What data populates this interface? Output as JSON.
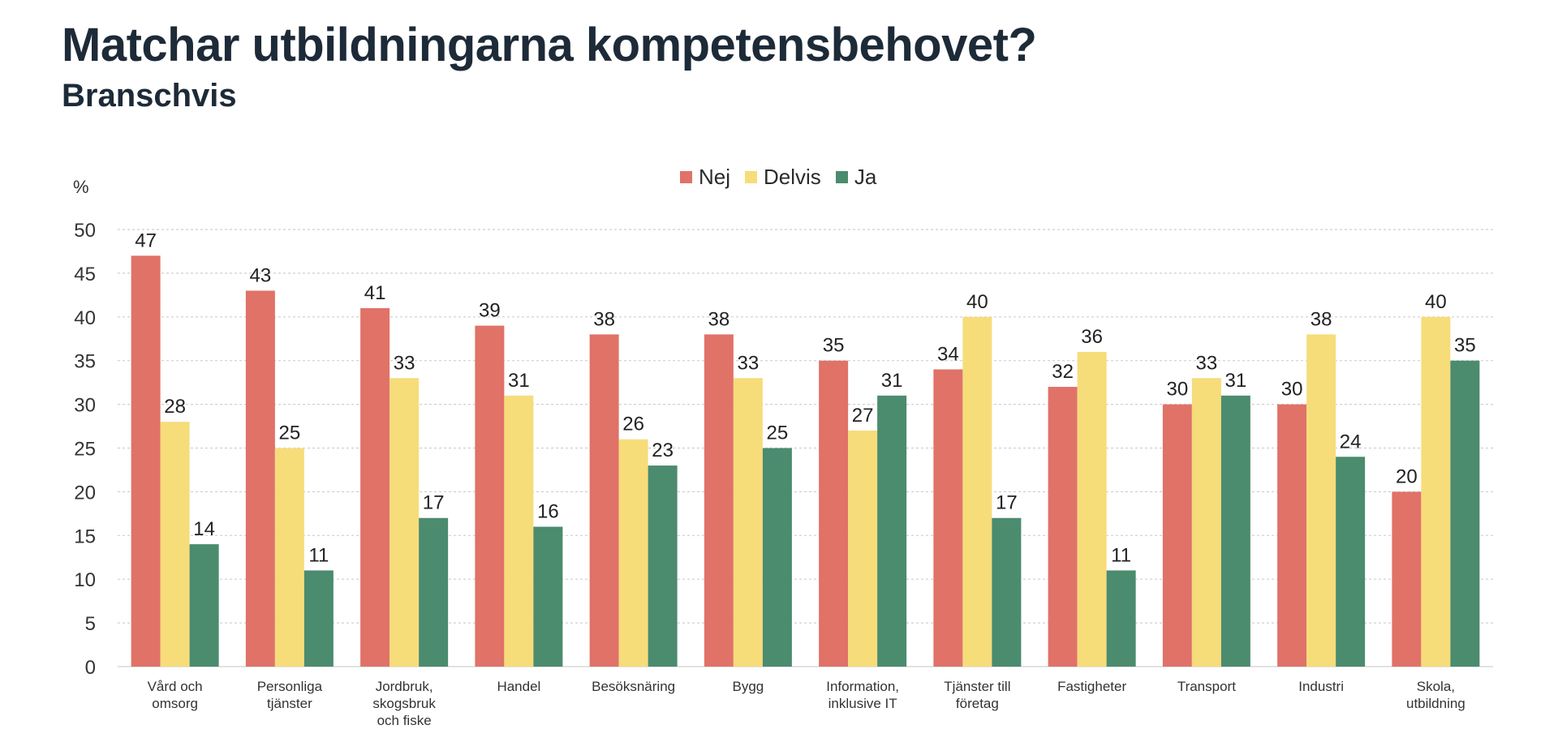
{
  "title": "Matchar utbildningarna kompetensbehovet?",
  "subtitle": "Branschvis",
  "chart_data": {
    "type": "bar",
    "title": "Matchar utbildningarna kompetensbehovet?",
    "subtitle": "Branschvis",
    "ylabel": "%",
    "xlabel": "",
    "ylim": [
      0,
      50
    ],
    "yticks": [
      0,
      5,
      10,
      15,
      20,
      25,
      30,
      35,
      40,
      45,
      50
    ],
    "grid": true,
    "legend_position": "top-center",
    "categories": [
      [
        "Vård och",
        "omsorg"
      ],
      [
        "Personliga",
        "tjänster"
      ],
      [
        "Jordbruk,",
        "skogsbruk",
        "och fiske"
      ],
      [
        "Handel"
      ],
      [
        "Besöksnäring"
      ],
      [
        "Bygg"
      ],
      [
        "Information,",
        "inklusive IT"
      ],
      [
        "Tjänster till",
        "företag"
      ],
      [
        "Fastigheter"
      ],
      [
        "Transport"
      ],
      [
        "Industri"
      ],
      [
        "Skola,",
        "utbildning"
      ]
    ],
    "series": [
      {
        "name": "Nej",
        "color": "#e07268",
        "values": [
          47,
          43,
          41,
          39,
          38,
          38,
          35,
          34,
          32,
          30,
          30,
          20
        ]
      },
      {
        "name": "Delvis",
        "color": "#f7dc7a",
        "values": [
          28,
          25,
          33,
          31,
          26,
          33,
          27,
          40,
          36,
          33,
          38,
          40
        ]
      },
      {
        "name": "Ja",
        "color": "#4b8b6e",
        "values": [
          14,
          11,
          17,
          16,
          23,
          25,
          31,
          17,
          11,
          31,
          24,
          35
        ]
      }
    ]
  }
}
